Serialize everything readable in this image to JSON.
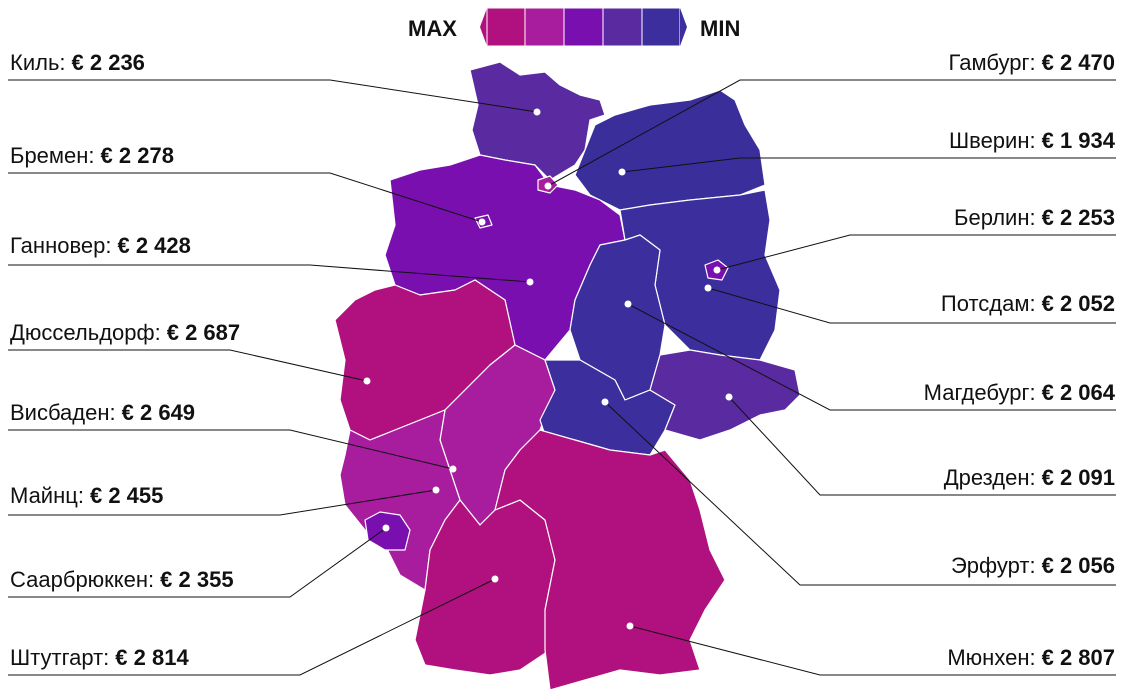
{
  "legend": {
    "max": "MAX",
    "min": "MIN"
  },
  "cities": [
    {
      "name": "Киль:",
      "value": "€ 2 236"
    },
    {
      "name": "Бремен:",
      "value": "€ 2 278"
    },
    {
      "name": "Ганновер:",
      "value": "€ 2 428"
    },
    {
      "name": "Дюссельдорф:",
      "value": "€ 2 687"
    },
    {
      "name": "Висбаден:",
      "value": "€ 2 649"
    },
    {
      "name": "Майнц:",
      "value": "€ 2 455"
    },
    {
      "name": "Саарбрюккен:",
      "value": "€ 2 355"
    },
    {
      "name": "Штутгарт:",
      "value": "€ 2 814"
    },
    {
      "name": "Гамбург:",
      "value": "€ 2 470"
    },
    {
      "name": "Шверин:",
      "value": "€ 1 934"
    },
    {
      "name": "Берлин:",
      "value": "€ 2 253"
    },
    {
      "name": "Потсдам:",
      "value": "€ 2 052"
    },
    {
      "name": "Магдебург:",
      "value": "€ 2 064"
    },
    {
      "name": "Дрезден:",
      "value": "€ 2 091"
    },
    {
      "name": "Эрфурт:",
      "value": "€ 2 056"
    },
    {
      "name": "Мюнхен:",
      "value": "€ 2 807"
    }
  ]
}
